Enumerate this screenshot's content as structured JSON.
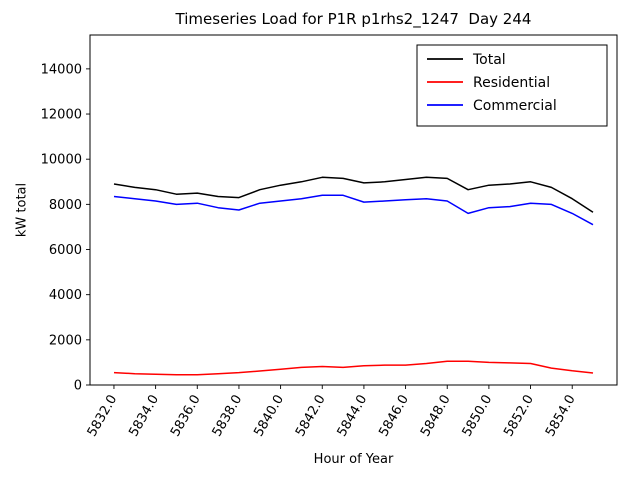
{
  "chart": {
    "title": "Timeseries Load for P1R p1rhs2_1247  Day 244",
    "xlabel": "Hour of Year",
    "ylabel": "kW total"
  },
  "chart_data": {
    "type": "line",
    "title": "Timeseries Load for P1R p1rhs2_1247  Day 244",
    "xlabel": "Hour of Year",
    "ylabel": "kW total",
    "grid": false,
    "legend_position": "upper right",
    "xlim": [
      5830.85,
      5856.15
    ],
    "ylim": [
      0,
      15500
    ],
    "yticks": [
      0,
      2000,
      4000,
      6000,
      8000,
      10000,
      12000,
      14000
    ],
    "xticks": [
      5832,
      5834,
      5836,
      5838,
      5840,
      5842,
      5844,
      5846,
      5848,
      5850,
      5852,
      5854
    ],
    "xtick_labels": [
      "5832.0",
      "5834.0",
      "5836.0",
      "5838.0",
      "5840.0",
      "5842.0",
      "5844.0",
      "5846.0",
      "5848.0",
      "5850.0",
      "5852.0",
      "5854.0"
    ],
    "x": [
      5832,
      5833,
      5834,
      5835,
      5836,
      5837,
      5838,
      5839,
      5840,
      5841,
      5842,
      5843,
      5844,
      5845,
      5846,
      5847,
      5848,
      5849,
      5850,
      5851,
      5852,
      5853,
      5854,
      5855
    ],
    "series": [
      {
        "name": "Total",
        "color": "#000000",
        "values": [
          8900,
          8750,
          8650,
          8450,
          8500,
          8350,
          8300,
          8650,
          8850,
          9000,
          9200,
          9150,
          8950,
          9000,
          9100,
          9200,
          9150,
          8650,
          8850,
          8900,
          9000,
          8750,
          8250,
          7650
        ]
      },
      {
        "name": "Residential",
        "color": "#ff0000",
        "values": [
          550,
          500,
          480,
          450,
          450,
          500,
          550,
          620,
          700,
          780,
          820,
          780,
          850,
          880,
          880,
          950,
          1050,
          1050,
          1000,
          980,
          950,
          750,
          630,
          530
        ]
      },
      {
        "name": "Commercial",
        "color": "#0000ff",
        "values": [
          8350,
          8250,
          8150,
          8000,
          8050,
          7850,
          7750,
          8050,
          8150,
          8250,
          8400,
          8400,
          8100,
          8150,
          8200,
          8250,
          8150,
          7600,
          7850,
          7900,
          8050,
          8000,
          7600,
          7100
        ]
      }
    ]
  }
}
